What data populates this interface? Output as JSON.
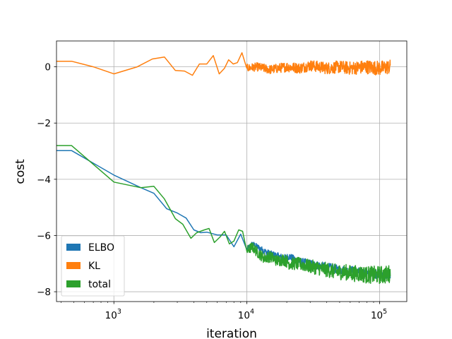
{
  "chart_data": {
    "type": "line",
    "title": "",
    "xlabel": "iteration",
    "ylabel": "cost",
    "xscale": "log",
    "xlim": [
      370,
      160000
    ],
    "ylim": [
      -8.35,
      0.92
    ],
    "grid": true,
    "legend": "lower-left",
    "x_ticks": [
      {
        "value": 1000,
        "base": "10",
        "exp": "3"
      },
      {
        "value": 10000,
        "base": "10",
        "exp": "4"
      },
      {
        "value": 100000,
        "base": "10",
        "exp": "5"
      }
    ],
    "y_ticks": [
      {
        "value": 0,
        "label": "0"
      },
      {
        "value": -2,
        "label": "−2"
      },
      {
        "value": -4,
        "label": "−4"
      },
      {
        "value": -6,
        "label": "−6"
      },
      {
        "value": -8,
        "label": "−8"
      }
    ],
    "series": [
      {
        "name": "ELBO",
        "color": "#1f77b4",
        "points": [
          [
            370,
            -2.98
          ],
          [
            480,
            -2.98
          ],
          [
            1000,
            -3.85
          ],
          [
            1600,
            -4.3
          ],
          [
            2000,
            -4.5
          ],
          [
            2500,
            -5.05
          ],
          [
            3000,
            -5.2
          ],
          [
            3500,
            -5.38
          ],
          [
            4000,
            -5.8
          ],
          [
            4500,
            -5.9
          ],
          [
            5000,
            -5.88
          ],
          [
            6000,
            -5.98
          ],
          [
            7000,
            -5.98
          ],
          [
            8000,
            -6.4
          ],
          [
            9000,
            -5.95
          ],
          [
            10000,
            -6.5
          ],
          [
            11000,
            -6.3
          ],
          [
            12000,
            -6.4
          ],
          [
            13500,
            -6.55
          ],
          [
            15000,
            -6.65
          ],
          [
            17000,
            -6.72
          ],
          [
            19000,
            -6.8
          ],
          [
            21000,
            -6.75
          ],
          [
            24000,
            -6.9
          ],
          [
            27000,
            -6.95
          ],
          [
            30000,
            -7.0
          ],
          [
            34000,
            -7.05
          ],
          [
            38000,
            -7.1
          ],
          [
            43000,
            -7.15
          ],
          [
            48000,
            -7.2
          ],
          [
            55000,
            -7.25
          ],
          [
            62000,
            -7.25
          ],
          [
            70000,
            -7.3
          ],
          [
            80000,
            -7.35
          ],
          [
            90000,
            -7.35
          ],
          [
            100000,
            -7.35
          ],
          [
            110000,
            -7.4
          ],
          [
            120000,
            -7.35
          ]
        ],
        "noise": 0.18
      },
      {
        "name": "KL",
        "color": "#ff7f0e",
        "points": [
          [
            370,
            0.2
          ],
          [
            480,
            0.2
          ],
          [
            700,
            0.0
          ],
          [
            1000,
            -0.25
          ],
          [
            1500,
            0.0
          ],
          [
            1950,
            0.28
          ],
          [
            2400,
            0.35
          ],
          [
            2900,
            -0.13
          ],
          [
            3400,
            -0.15
          ],
          [
            3900,
            -0.3
          ],
          [
            4400,
            0.1
          ],
          [
            5000,
            0.1
          ],
          [
            5600,
            0.4
          ],
          [
            6200,
            -0.25
          ],
          [
            6800,
            -0.05
          ],
          [
            7300,
            0.25
          ],
          [
            7900,
            0.1
          ],
          [
            8500,
            0.15
          ],
          [
            9200,
            0.5
          ],
          [
            10000,
            -0.05
          ],
          [
            12000,
            0.0
          ],
          [
            15000,
            -0.1
          ],
          [
            20000,
            0.0
          ],
          [
            25000,
            -0.05
          ],
          [
            30000,
            0.05
          ],
          [
            40000,
            -0.05
          ],
          [
            50000,
            0.0
          ],
          [
            60000,
            -0.05
          ],
          [
            80000,
            0.0
          ],
          [
            100000,
            -0.05
          ],
          [
            120000,
            0.0
          ]
        ],
        "noise": 0.26
      },
      {
        "name": "total",
        "color": "#2ca02c",
        "points": [
          [
            370,
            -2.8
          ],
          [
            480,
            -2.8
          ],
          [
            1000,
            -4.1
          ],
          [
            1600,
            -4.3
          ],
          [
            2000,
            -4.25
          ],
          [
            2400,
            -4.7
          ],
          [
            2900,
            -5.4
          ],
          [
            3300,
            -5.6
          ],
          [
            3800,
            -6.1
          ],
          [
            4200,
            -5.9
          ],
          [
            4800,
            -5.8
          ],
          [
            5200,
            -5.75
          ],
          [
            5700,
            -6.25
          ],
          [
            6300,
            -6.05
          ],
          [
            6800,
            -5.85
          ],
          [
            7400,
            -6.3
          ],
          [
            8000,
            -6.2
          ],
          [
            8700,
            -5.8
          ],
          [
            9300,
            -5.85
          ],
          [
            10000,
            -6.55
          ],
          [
            11000,
            -6.4
          ],
          [
            12000,
            -6.6
          ],
          [
            13500,
            -6.8
          ],
          [
            15000,
            -6.75
          ],
          [
            17000,
            -6.9
          ],
          [
            19000,
            -6.85
          ],
          [
            21000,
            -7.0
          ],
          [
            24000,
            -7.0
          ],
          [
            27000,
            -7.05
          ],
          [
            30000,
            -7.1
          ],
          [
            34000,
            -7.15
          ],
          [
            38000,
            -7.2
          ],
          [
            43000,
            -7.25
          ],
          [
            48000,
            -7.3
          ],
          [
            55000,
            -7.3
          ],
          [
            62000,
            -7.35
          ],
          [
            70000,
            -7.35
          ],
          [
            80000,
            -7.4
          ],
          [
            90000,
            -7.4
          ],
          [
            100000,
            -7.4
          ],
          [
            110000,
            -7.4
          ],
          [
            120000,
            -7.35
          ]
        ],
        "noise": 0.32
      }
    ]
  }
}
